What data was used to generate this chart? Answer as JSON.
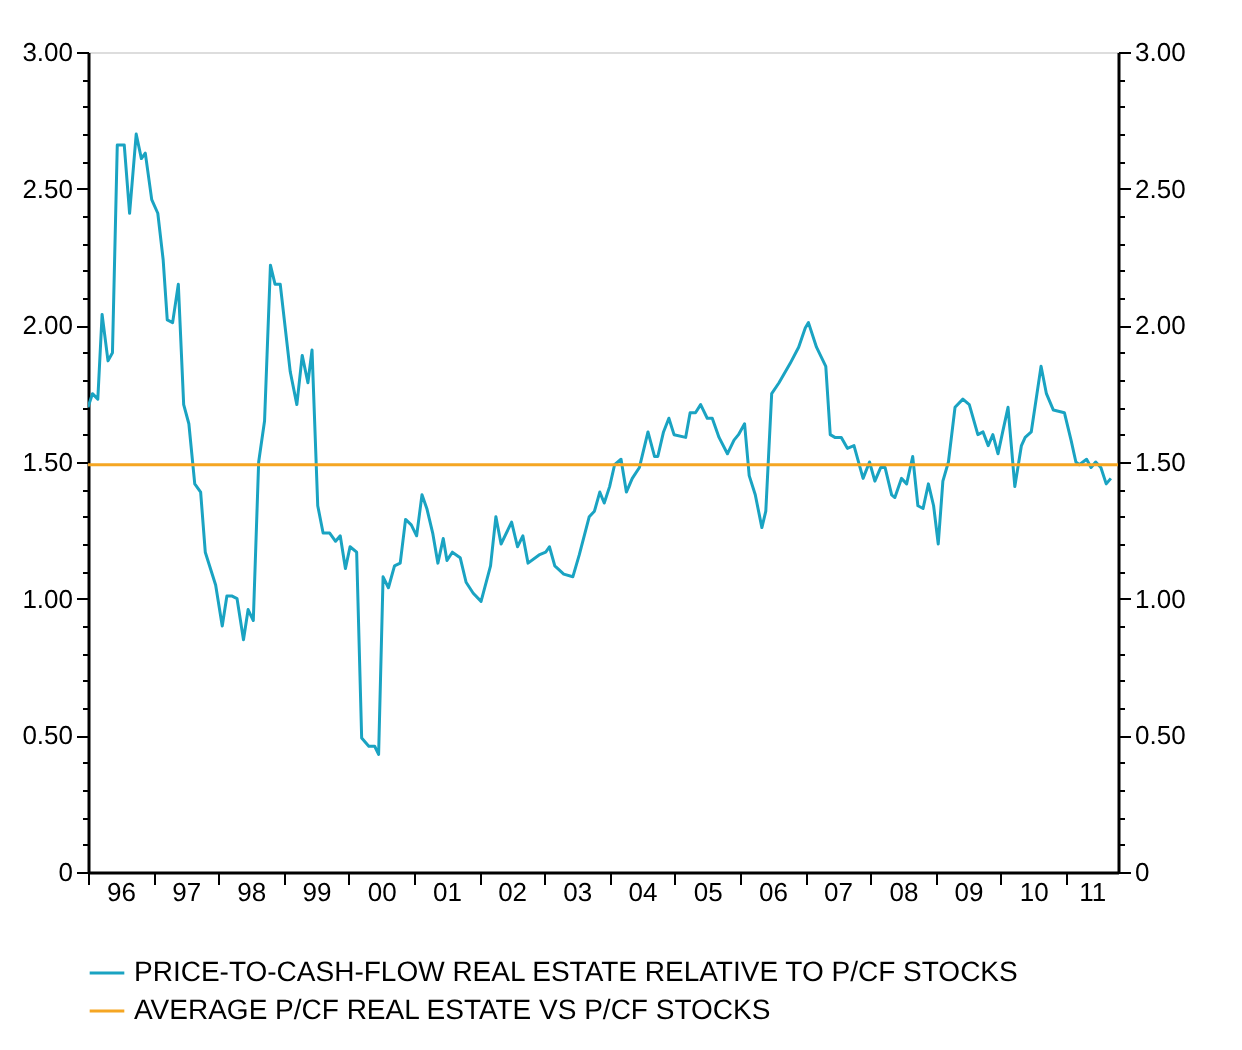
{
  "chart_data": {
    "type": "line",
    "xlim": [
      "1996-01-01",
      "2011-10-19"
    ],
    "xticks": [
      {
        "value": "1996-01-01",
        "label": null
      },
      {
        "value": "1996-07-01",
        "label": "96"
      },
      {
        "value": "1997-01-01",
        "label": null
      },
      {
        "value": "1997-07-01",
        "label": "97"
      },
      {
        "value": "1998-01-01",
        "label": null
      },
      {
        "value": "1998-07-01",
        "label": "98"
      },
      {
        "value": "1999-01-01",
        "label": null
      },
      {
        "value": "1999-07-01",
        "label": "99"
      },
      {
        "value": "2000-01-01",
        "label": null
      },
      {
        "value": "2000-07-01",
        "label": "00"
      },
      {
        "value": "2001-01-01",
        "label": null
      },
      {
        "value": "2001-07-01",
        "label": "01"
      },
      {
        "value": "2002-01-01",
        "label": null
      },
      {
        "value": "2002-07-01",
        "label": "02"
      },
      {
        "value": "2003-01-01",
        "label": null
      },
      {
        "value": "2003-07-01",
        "label": "03"
      },
      {
        "value": "2004-01-01",
        "label": null
      },
      {
        "value": "2004-07-01",
        "label": "04"
      },
      {
        "value": "2005-01-01",
        "label": null
      },
      {
        "value": "2005-07-01",
        "label": "05"
      },
      {
        "value": "2006-01-01",
        "label": null
      },
      {
        "value": "2006-07-01",
        "label": "06"
      },
      {
        "value": "2007-01-01",
        "label": null
      },
      {
        "value": "2007-07-01",
        "label": "07"
      },
      {
        "value": "2008-01-01",
        "label": null
      },
      {
        "value": "2008-07-01",
        "label": "08"
      },
      {
        "value": "2009-01-01",
        "label": null
      },
      {
        "value": "2009-07-01",
        "label": "09"
      },
      {
        "value": "2010-01-01",
        "label": null
      },
      {
        "value": "2010-07-01",
        "label": "10"
      },
      {
        "value": "2011-01-01",
        "label": null
      },
      {
        "value": "2011-05-25",
        "label": "11"
      }
    ],
    "ylim": [
      0,
      3
    ],
    "yticks": [
      {
        "value": 0,
        "label": "0"
      },
      {
        "value": 0.1,
        "label": null
      },
      {
        "value": 0.2,
        "label": null
      },
      {
        "value": 0.3,
        "label": null
      },
      {
        "value": 0.4,
        "label": null
      },
      {
        "value": 0.5,
        "label": "0.50"
      },
      {
        "value": 0.6,
        "label": null
      },
      {
        "value": 0.7,
        "label": null
      },
      {
        "value": 0.8,
        "label": null
      },
      {
        "value": 0.9,
        "label": null
      },
      {
        "value": 1,
        "label": "1.00"
      },
      {
        "value": 1.1,
        "label": null
      },
      {
        "value": 1.2,
        "label": null
      },
      {
        "value": 1.3,
        "label": null
      },
      {
        "value": 1.4,
        "label": null
      },
      {
        "value": 1.5,
        "label": "1.50"
      },
      {
        "value": 1.6,
        "label": null
      },
      {
        "value": 1.7,
        "label": null
      },
      {
        "value": 1.8,
        "label": null
      },
      {
        "value": 1.9,
        "label": null
      },
      {
        "value": 2,
        "label": "2.00"
      },
      {
        "value": 2.1,
        "label": null
      },
      {
        "value": 2.2,
        "label": null
      },
      {
        "value": 2.3,
        "label": null
      },
      {
        "value": 2.4,
        "label": null
      },
      {
        "value": 2.5,
        "label": "2.50"
      },
      {
        "value": 2.6,
        "label": null
      },
      {
        "value": 2.7,
        "label": null
      },
      {
        "value": 2.8,
        "label": null
      },
      {
        "value": 2.9,
        "label": null
      },
      {
        "value": 3,
        "label": "3.00"
      }
    ],
    "y2lim": [
      0,
      3
    ],
    "y2ticks": [
      {
        "value": 0,
        "label": "0"
      },
      {
        "value": 0.1,
        "label": null
      },
      {
        "value": 0.2,
        "label": null
      },
      {
        "value": 0.3,
        "label": null
      },
      {
        "value": 0.4,
        "label": null
      },
      {
        "value": 0.5,
        "label": "0.50"
      },
      {
        "value": 0.6,
        "label": null
      },
      {
        "value": 0.7,
        "label": null
      },
      {
        "value": 0.8,
        "label": null
      },
      {
        "value": 0.9,
        "label": null
      },
      {
        "value": 1,
        "label": "1.00"
      },
      {
        "value": 1.1,
        "label": null
      },
      {
        "value": 1.2,
        "label": null
      },
      {
        "value": 1.3,
        "label": null
      },
      {
        "value": 1.4,
        "label": null
      },
      {
        "value": 1.5,
        "label": "1.50"
      },
      {
        "value": 1.6,
        "label": null
      },
      {
        "value": 1.7,
        "label": null
      },
      {
        "value": 1.8,
        "label": null
      },
      {
        "value": 1.9,
        "label": null
      },
      {
        "value": 2,
        "label": "2.00"
      },
      {
        "value": 2.1,
        "label": null
      },
      {
        "value": 2.2,
        "label": null
      },
      {
        "value": 2.3,
        "label": null
      },
      {
        "value": 2.4,
        "label": null
      },
      {
        "value": 2.5,
        "label": "2.50"
      },
      {
        "value": 2.6,
        "label": null
      },
      {
        "value": 2.7,
        "label": null
      },
      {
        "value": 2.8,
        "label": null
      },
      {
        "value": 2.9,
        "label": null
      },
      {
        "value": 3,
        "label": "3.00"
      }
    ],
    "series": [
      {
        "name": "PRICE-TO-CASH-FLOW REAL ESTATE RELATIVE TO P/CF STOCKS",
        "color": "#1aa3c2",
        "x": [
          "1996-01-01",
          "1996-01-26",
          "1996-02-25",
          "1996-03-20",
          "1996-04-22",
          "1996-05-17",
          "1996-06-13",
          "1996-07-22",
          "1996-08-21",
          "1996-09-27",
          "1996-10-26",
          "1996-11-17",
          "1996-12-23",
          "1997-01-26",
          "1997-02-25",
          "1997-03-20",
          "1997-04-19",
          "1997-05-21",
          "1997-06-20",
          "1997-07-19",
          "1997-08-21",
          "1997-09-23",
          "1997-10-19",
          "1997-12-16",
          "1998-01-22",
          "1998-02-17",
          "1998-03-16",
          "1998-04-15",
          "1998-05-21",
          "1998-06-16",
          "1998-07-15",
          "1998-08-14",
          "1998-09-16",
          "1998-10-19",
          "1998-11-14",
          "1998-12-13",
          "1999-02-07",
          "1999-03-16",
          "1999-04-15",
          "1999-05-17",
          "1999-06-09",
          "1999-07-11",
          "1999-08-10",
          "1999-09-16",
          "1999-10-19",
          "1999-11-14",
          "1999-12-13",
          "2000-01-08",
          "2000-02-14",
          "2000-03-13",
          "2000-04-22",
          "2000-05-25",
          "2000-06-16",
          "2000-07-11",
          "2000-08-10",
          "2000-09-13",
          "2000-10-15",
          "2000-11-14",
          "2000-12-16",
          "2001-01-15",
          "2001-02-14",
          "2001-03-13",
          "2001-04-15",
          "2001-05-14",
          "2001-06-13",
          "2001-07-04",
          "2001-08-03",
          "2001-09-16",
          "2001-10-19",
          "2001-11-28",
          "2002-01-11",
          "2002-03-05",
          "2002-04-04",
          "2002-05-03",
          "2002-07-01",
          "2002-08-03",
          "2002-09-02",
          "2002-10-01",
          "2002-12-02",
          "2003-01-08",
          "2003-01-29",
          "2003-02-28",
          "2003-04-19",
          "2003-06-09",
          "2003-07-15",
          "2003-09-09",
          "2003-10-08",
          "2003-11-07",
          "2003-12-02",
          "2004-01-01",
          "2004-01-29",
          "2004-03-05",
          "2004-04-04",
          "2004-05-07",
          "2004-06-16",
          "2004-08-03",
          "2004-09-09",
          "2004-09-27",
          "2004-10-29",
          "2004-11-28",
          "2004-12-27",
          "2005-03-02",
          "2005-03-27",
          "2005-04-26",
          "2005-05-25",
          "2005-07-01",
          "2005-07-29",
          "2005-09-05",
          "2005-10-22",
          "2005-11-28",
          "2005-12-23",
          "2006-01-26",
          "2006-02-21",
          "2006-03-27",
          "2006-05-03",
          "2006-05-25",
          "2006-06-27",
          "2006-08-07",
          "2006-10-08",
          "2006-11-25",
          "2007-01-01",
          "2007-01-19",
          "2007-03-05",
          "2007-04-26",
          "2007-05-21",
          "2007-06-16",
          "2007-07-22",
          "2007-08-25",
          "2007-10-01",
          "2007-11-21",
          "2007-12-27",
          "2008-01-26",
          "2008-02-28",
          "2008-03-23",
          "2008-04-29",
          "2008-05-17",
          "2008-06-23",
          "2008-07-22",
          "2008-08-25",
          "2008-09-23",
          "2008-10-22",
          "2008-11-21",
          "2008-12-20",
          "2009-01-15",
          "2009-02-10",
          "2009-03-13",
          "2009-04-19",
          "2009-06-02",
          "2009-07-08",
          "2009-08-25",
          "2009-09-23",
          "2009-10-22",
          "2009-11-17",
          "2009-12-16",
          "2010-01-11",
          "2010-02-10",
          "2010-03-20",
          "2010-04-26",
          "2010-05-17",
          "2010-06-20",
          "2010-08-14",
          "2010-09-13",
          "2010-10-22",
          "2010-12-23",
          "2011-01-29",
          "2011-02-25",
          "2011-03-16",
          "2011-04-26",
          "2011-05-21",
          "2011-06-16",
          "2011-07-15",
          "2011-08-14",
          "2011-09-09"
        ],
        "values": [
          1.7,
          1.75,
          1.73,
          2.04,
          1.87,
          1.9,
          2.66,
          2.66,
          2.41,
          2.7,
          2.61,
          2.63,
          2.46,
          2.41,
          2.24,
          2.02,
          2.01,
          2.15,
          1.71,
          1.64,
          1.42,
          1.39,
          1.17,
          1.05,
          0.9,
          1.01,
          1.01,
          1.0,
          0.85,
          0.96,
          0.92,
          1.5,
          1.65,
          2.22,
          2.15,
          2.15,
          1.83,
          1.71,
          1.89,
          1.79,
          1.91,
          1.34,
          1.24,
          1.24,
          1.21,
          1.23,
          1.11,
          1.19,
          1.17,
          0.49,
          0.46,
          0.46,
          0.43,
          1.08,
          1.04,
          1.12,
          1.13,
          1.29,
          1.27,
          1.23,
          1.38,
          1.33,
          1.24,
          1.13,
          1.22,
          1.14,
          1.17,
          1.15,
          1.06,
          1.02,
          0.99,
          1.12,
          1.3,
          1.2,
          1.28,
          1.19,
          1.23,
          1.13,
          1.16,
          1.17,
          1.19,
          1.12,
          1.09,
          1.08,
          1.16,
          1.3,
          1.32,
          1.39,
          1.35,
          1.41,
          1.49,
          1.51,
          1.39,
          1.44,
          1.48,
          1.61,
          1.52,
          1.52,
          1.61,
          1.66,
          1.6,
          1.59,
          1.68,
          1.68,
          1.71,
          1.66,
          1.66,
          1.59,
          1.53,
          1.58,
          1.6,
          1.64,
          1.45,
          1.38,
          1.26,
          1.32,
          1.75,
          1.79,
          1.86,
          1.92,
          1.99,
          2.01,
          1.92,
          1.85,
          1.6,
          1.59,
          1.59,
          1.55,
          1.56,
          1.44,
          1.5,
          1.43,
          1.48,
          1.48,
          1.38,
          1.37,
          1.44,
          1.42,
          1.52,
          1.34,
          1.33,
          1.42,
          1.34,
          1.2,
          1.43,
          1.5,
          1.7,
          1.73,
          1.71,
          1.6,
          1.61,
          1.56,
          1.6,
          1.53,
          1.61,
          1.7,
          1.41,
          1.56,
          1.59,
          1.61,
          1.85,
          1.75,
          1.69,
          1.68,
          1.58,
          1.5,
          1.49,
          1.51,
          1.48,
          1.5,
          1.48,
          1.42,
          1.44
        ]
      },
      {
        "name": "AVERAGE P/CF REAL ESTATE VS P/CF STOCKS",
        "color": "#f5a623",
        "axis": "y2",
        "x": [
          "1996-01-01",
          "2011-10-19"
        ],
        "values": [
          1.49,
          1.49
        ]
      }
    ],
    "legend": "bottom",
    "grid": false,
    "marker": "none",
    "line_style": "solid"
  }
}
